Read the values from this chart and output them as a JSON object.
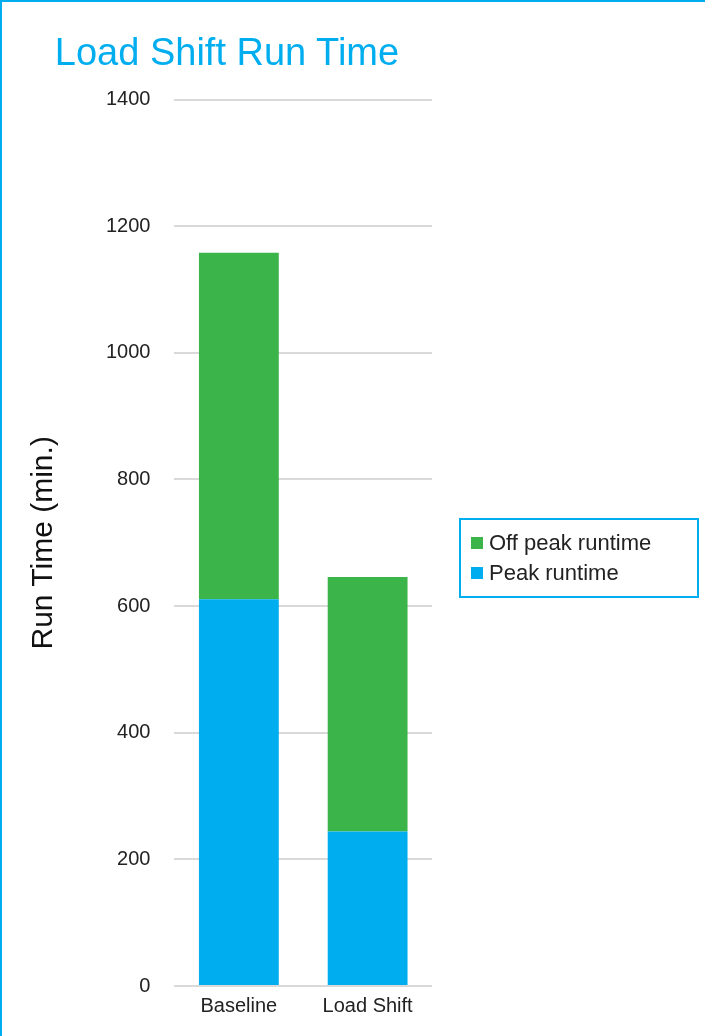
{
  "chart_data": {
    "type": "bar",
    "title": "Load Shift Run Time",
    "ylabel": "Run Time (min.)",
    "categories": [
      "Baseline",
      "Load Shift"
    ],
    "stacked": true,
    "series": [
      {
        "name": "Peak runtime",
        "color": "#00aeef",
        "values": [
          611,
          244
        ]
      },
      {
        "name": "Off peak runtime",
        "color": "#3bb54a",
        "values": [
          547,
          402
        ]
      }
    ],
    "ylim": [
      0,
      1400
    ],
    "yticks": [
      0,
      200,
      400,
      600,
      800,
      1000,
      1200,
      1400
    ],
    "grid": "y",
    "legend": "right"
  }
}
